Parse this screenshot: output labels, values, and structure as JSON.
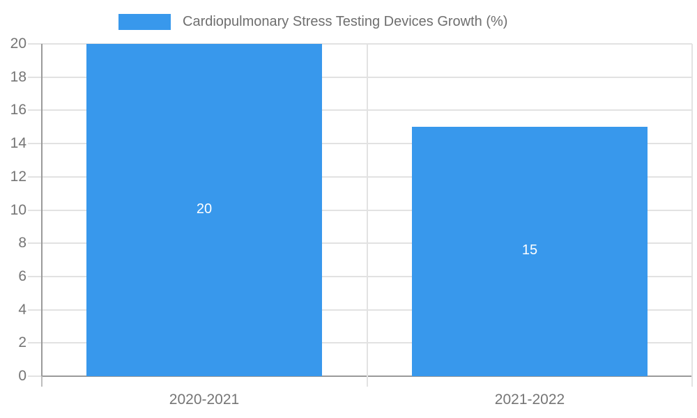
{
  "chart_data": {
    "type": "bar",
    "title": "",
    "legend": "Cardiopulmonary Stress Testing Devices Growth (%)",
    "legend_position": "top",
    "categories": [
      "2020-2021",
      "2021-2022"
    ],
    "values": [
      20,
      15
    ],
    "bar_labels": [
      "20",
      "15"
    ],
    "xlabel": "",
    "ylabel": "",
    "ylim": [
      0,
      20
    ],
    "ytick_step": 2,
    "yticks": [
      0,
      2,
      4,
      6,
      8,
      10,
      12,
      14,
      16,
      18,
      20
    ],
    "grid": true,
    "colors": {
      "bar": "#3898ec",
      "grid": "#e2e2e2",
      "axis": "#9a9a9a",
      "tick_below_axis": "#bdbdbd",
      "tick_text": "#757575",
      "legend_text": "#6e6e6e",
      "bar_label_text": "#ffffff",
      "background": "#ffffff"
    }
  }
}
